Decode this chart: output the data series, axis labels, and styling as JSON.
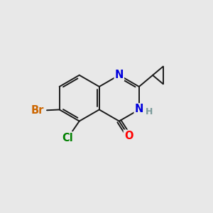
{
  "background_color": "#e8e8e8",
  "bond_color": "#1a1a1a",
  "atom_colors": {
    "N": "#0000dd",
    "O": "#ff0000",
    "Br": "#cc6600",
    "Cl": "#008000",
    "H": "#7a9a9a",
    "C": "#1a1a1a"
  },
  "bond_lw": 1.4,
  "font_size_atoms": 10.5
}
